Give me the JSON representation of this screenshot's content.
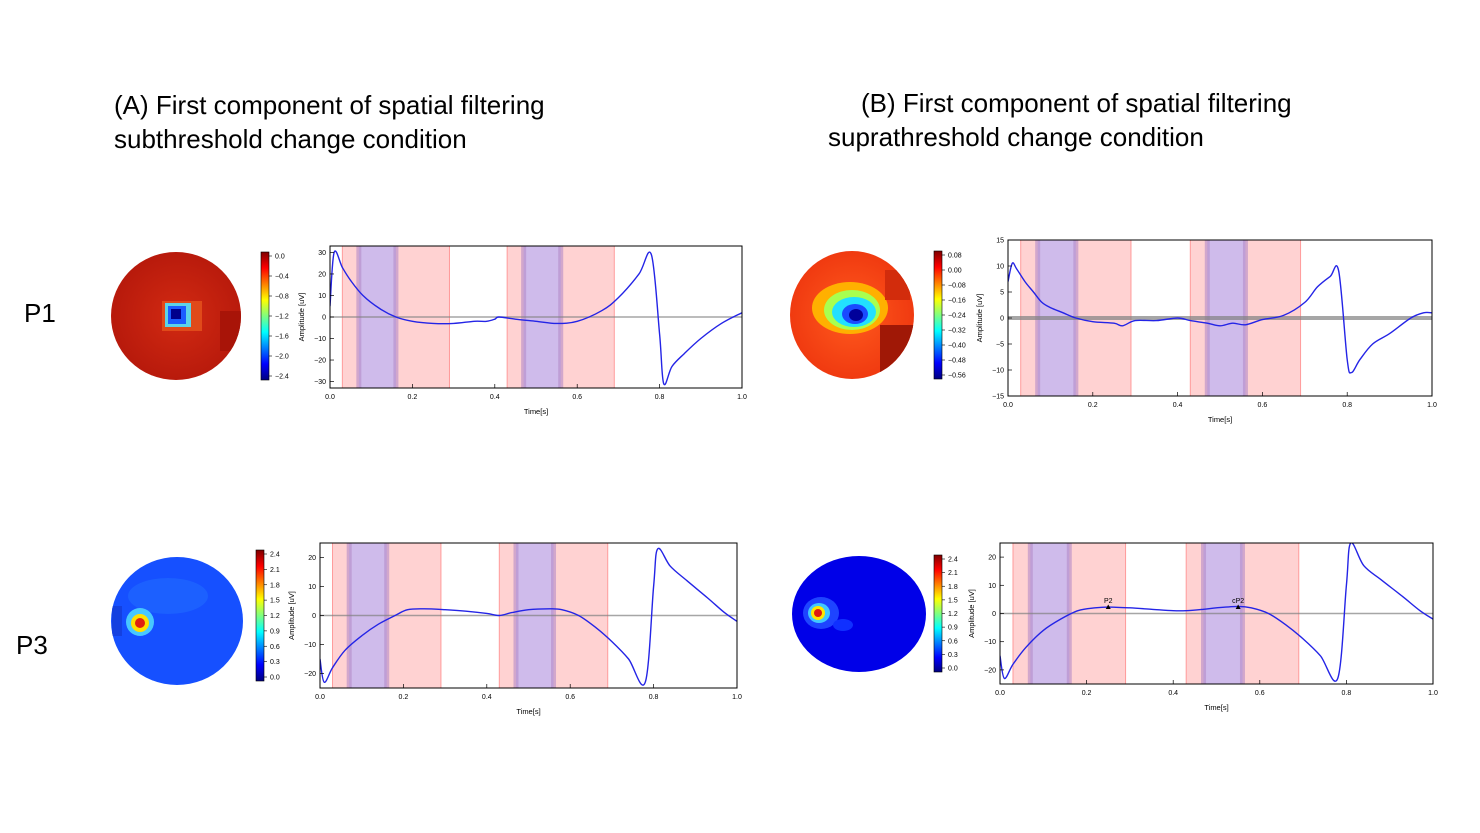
{
  "titles": {
    "a": [
      "(A) First component of spatial filtering",
      "subthreshold change condition"
    ],
    "b": [
      "(B) First component of spatial filtering",
      "suprathreshold change condition"
    ]
  },
  "rows": [
    "P1",
    "P3"
  ],
  "colors": {
    "trace": "#2424e6",
    "red_band": "#ff9b9b",
    "blue_band": "#a8a8ff",
    "zero_line": "#808080"
  },
  "chart_data": [
    {
      "id": "a-p1",
      "type": "line",
      "xlabel": "Time[s]",
      "ylabel": "Amplitude [uV]",
      "xlim": [
        0.0,
        1.0
      ],
      "ylim": [
        -33,
        33
      ],
      "xticks": [
        "0.0",
        "0.2",
        "0.4",
        "0.6",
        "0.8",
        "1.0"
      ],
      "yticks": [
        "30",
        "20",
        "10",
        "0",
        "−10",
        "−20",
        "−30"
      ],
      "colorbar": [
        "0.0",
        "−0.4",
        "−0.8",
        "−1.2",
        "−1.6",
        "−2.0",
        "−2.4"
      ],
      "red_bands": [
        [
          0.03,
          0.29
        ],
        [
          0.43,
          0.69
        ]
      ],
      "blue_bands": [
        [
          0.07,
          0.16
        ],
        [
          0.47,
          0.56
        ]
      ],
      "series": [
        {
          "x": [
            0.0,
            0.01,
            0.03,
            0.05,
            0.08,
            0.12,
            0.16,
            0.2,
            0.25,
            0.3,
            0.35,
            0.38,
            0.4,
            0.41,
            0.45,
            0.5,
            0.55,
            0.6,
            0.66,
            0.7,
            0.75,
            0.78,
            0.8,
            0.81,
            0.83,
            0.86,
            0.9,
            0.95,
            1.0
          ],
          "y": [
            5,
            30,
            23,
            17,
            10,
            4,
            0,
            -2,
            -3,
            -3,
            -2,
            -2,
            -1,
            0,
            -1,
            -2,
            -3,
            -2,
            3,
            9,
            20,
            29,
            -8,
            -31,
            -23,
            -17,
            -10,
            -3,
            2
          ]
        }
      ]
    },
    {
      "id": "b-p1",
      "type": "line",
      "xlabel": "Time[s]",
      "ylabel": "Amplitude [uV]",
      "xlim": [
        0.0,
        1.0
      ],
      "ylim": [
        -15,
        15
      ],
      "xticks": [
        "0.0",
        "0.2",
        "0.4",
        "0.6",
        "0.8",
        "1.0"
      ],
      "yticks": [
        "15",
        "10",
        "5",
        "0",
        "−5",
        "−10",
        "−15"
      ],
      "colorbar": [
        "0.08",
        "0.00",
        "−0.08",
        "−0.16",
        "−0.24",
        "−0.32",
        "−0.40",
        "−0.48",
        "−0.56"
      ],
      "red_bands": [
        [
          0.03,
          0.29
        ],
        [
          0.43,
          0.69
        ]
      ],
      "blue_bands": [
        [
          0.07,
          0.16
        ],
        [
          0.47,
          0.56
        ]
      ],
      "series": [
        {
          "x": [
            0.0,
            0.01,
            0.02,
            0.04,
            0.06,
            0.08,
            0.1,
            0.13,
            0.16,
            0.2,
            0.25,
            0.27,
            0.3,
            0.35,
            0.4,
            0.43,
            0.47,
            0.5,
            0.53,
            0.56,
            0.6,
            0.65,
            0.7,
            0.73,
            0.76,
            0.78,
            0.8,
            0.81,
            0.83,
            0.86,
            0.9,
            0.95,
            0.98,
            1.0
          ],
          "y": [
            7,
            10.5,
            9.5,
            7,
            5,
            3,
            2,
            1,
            0,
            -0.7,
            -1,
            -1.5,
            -0.5,
            -0.5,
            0,
            -0.5,
            -1,
            -1.5,
            -1,
            -1.3,
            -0.3,
            0.5,
            3,
            6,
            8,
            9,
            -8,
            -10.5,
            -8,
            -5,
            -3,
            0,
            1,
            1
          ]
        }
      ]
    },
    {
      "id": "a-p3",
      "type": "line",
      "xlabel": "Time[s]",
      "ylabel": "Amplitude [uV]",
      "xlim": [
        0.0,
        1.0
      ],
      "ylim": [
        -25,
        25
      ],
      "xticks": [
        "0.0",
        "0.2",
        "0.4",
        "0.6",
        "0.8",
        "1.0"
      ],
      "yticks": [
        "20",
        "10",
        "0",
        "−10",
        "−20"
      ],
      "colorbar": [
        "2.4",
        "2.1",
        "1.8",
        "1.5",
        "1.2",
        "0.9",
        "0.6",
        "0.3",
        "0.0"
      ],
      "red_bands": [
        [
          0.03,
          0.29
        ],
        [
          0.43,
          0.69
        ]
      ],
      "blue_bands": [
        [
          0.07,
          0.16
        ],
        [
          0.47,
          0.56
        ]
      ],
      "series": [
        {
          "x": [
            0.0,
            0.01,
            0.03,
            0.06,
            0.1,
            0.14,
            0.18,
            0.21,
            0.25,
            0.3,
            0.35,
            0.4,
            0.43,
            0.46,
            0.5,
            0.55,
            0.58,
            0.62,
            0.66,
            0.7,
            0.74,
            0.78,
            0.8,
            0.81,
            0.84,
            0.88,
            0.93,
            0.97,
            1.0
          ],
          "y": [
            -15,
            -23,
            -18,
            -12,
            -7,
            -3,
            0,
            2,
            2.3,
            2,
            1.5,
            0.7,
            0,
            1,
            2,
            2.3,
            2,
            0,
            -4,
            -9,
            -15,
            -23,
            10,
            23,
            17,
            12,
            6,
            1,
            -2
          ]
        }
      ]
    },
    {
      "id": "b-p3",
      "type": "line",
      "xlabel": "Time[s]",
      "ylabel": "Amplitude [uV]",
      "xlim": [
        0.0,
        1.0
      ],
      "ylim": [
        -25,
        25
      ],
      "xticks": [
        "0.0",
        "0.2",
        "0.4",
        "0.6",
        "0.8",
        "1.0"
      ],
      "yticks": [
        "20",
        "10",
        "0",
        "−10",
        "−20"
      ],
      "colorbar": [
        "2.4",
        "2.1",
        "1.8",
        "1.5",
        "1.2",
        "0.9",
        "0.6",
        "0.3",
        "0.0"
      ],
      "red_bands": [
        [
          0.03,
          0.29
        ],
        [
          0.43,
          0.69
        ]
      ],
      "blue_bands": [
        [
          0.07,
          0.16
        ],
        [
          0.47,
          0.56
        ]
      ],
      "annotations": [
        {
          "label": "P2",
          "x": 0.25,
          "y": 2.3
        },
        {
          "label": "cP2",
          "x": 0.55,
          "y": 2.3
        }
      ],
      "series": [
        {
          "x": [
            0.0,
            0.01,
            0.03,
            0.06,
            0.1,
            0.14,
            0.18,
            0.22,
            0.25,
            0.3,
            0.35,
            0.4,
            0.43,
            0.47,
            0.5,
            0.55,
            0.58,
            0.62,
            0.66,
            0.7,
            0.74,
            0.78,
            0.8,
            0.81,
            0.84,
            0.88,
            0.93,
            0.97,
            1.0
          ],
          "y": [
            -15,
            -23,
            -18,
            -12,
            -6,
            -2,
            1,
            2,
            2.3,
            2,
            1.5,
            1,
            1,
            1.5,
            2,
            2.5,
            2,
            0,
            -4,
            -9,
            -15,
            -23,
            10,
            25,
            17,
            12,
            6,
            1,
            -2
          ]
        }
      ]
    }
  ]
}
